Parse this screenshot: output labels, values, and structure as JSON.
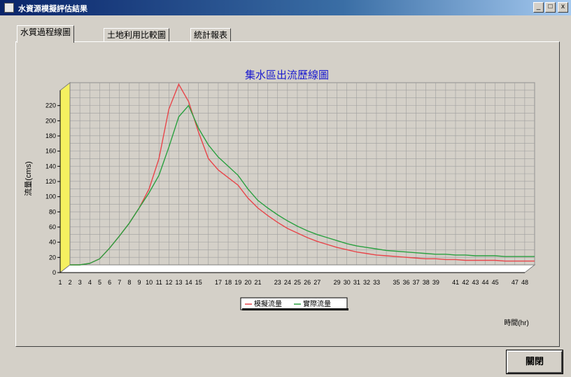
{
  "window": {
    "title": "水資源模擬評估結果"
  },
  "tabs": [
    {
      "label": "水質過程線圖"
    },
    {
      "label": "土地利用比較圖"
    },
    {
      "label": "統計報表"
    }
  ],
  "buttons": {
    "close_label": "關閉"
  },
  "colors": {
    "simulated": "#e8454a",
    "observed": "#2aa040",
    "wall": "#f5f060",
    "title": "#1a1ad0"
  },
  "chart_data": {
    "type": "line",
    "title": "集水區出流歷線圖",
    "ylabel": "流量(cms)",
    "xlabel": "時間(hr)",
    "ylim": [
      0,
      240
    ],
    "yticks": [
      0,
      20,
      40,
      60,
      80,
      100,
      120,
      140,
      160,
      180,
      200,
      220
    ],
    "x": [
      1,
      2,
      3,
      4,
      5,
      6,
      7,
      8,
      9,
      10,
      11,
      12,
      13,
      14,
      15,
      16,
      17,
      18,
      19,
      20,
      21,
      22,
      23,
      24,
      25,
      26,
      27,
      28,
      29,
      30,
      31,
      32,
      33,
      34,
      35,
      36,
      37,
      38,
      39,
      40,
      41,
      42,
      43,
      44,
      45,
      46,
      47,
      48
    ],
    "xtick_labels": [
      "1",
      "2",
      "3",
      "4",
      "5",
      "6",
      "7",
      "8",
      "9",
      "10",
      "11",
      "12",
      "13",
      "14",
      "15",
      "17",
      "18",
      "19",
      "20",
      "21",
      "23",
      "24",
      "25",
      "26",
      "27",
      "29",
      "30",
      "31",
      "32",
      "33",
      "35",
      "36",
      "37",
      "38",
      "39",
      "41",
      "42",
      "43",
      "44",
      "45",
      "47",
      "48"
    ],
    "legend": "bottom-center",
    "grid": true,
    "series": [
      {
        "name": "模擬流量",
        "values": [
          0,
          0,
          2,
          8,
          22,
          38,
          55,
          75,
          100,
          140,
          205,
          238,
          215,
          175,
          140,
          125,
          115,
          105,
          88,
          75,
          65,
          56,
          48,
          42,
          36,
          31,
          27,
          23,
          20,
          17,
          15,
          13,
          12,
          11,
          10,
          9,
          8,
          8,
          7,
          7,
          6,
          6,
          6,
          6,
          5,
          5,
          5,
          5
        ]
      },
      {
        "name": "實際流量",
        "values": [
          0,
          0,
          2,
          8,
          22,
          38,
          55,
          75,
          95,
          118,
          155,
          195,
          210,
          180,
          158,
          142,
          130,
          118,
          100,
          85,
          75,
          66,
          58,
          51,
          45,
          40,
          36,
          32,
          28,
          25,
          23,
          21,
          19,
          18,
          17,
          16,
          15,
          14,
          14,
          13,
          13,
          12,
          12,
          12,
          11,
          11,
          11,
          11
        ]
      }
    ]
  }
}
